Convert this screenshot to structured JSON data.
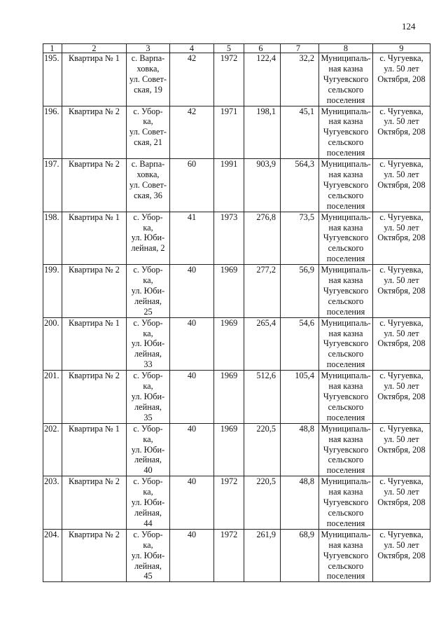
{
  "page_number": "124",
  "columns": [
    "1",
    "2",
    "3",
    "4",
    "5",
    "6",
    "7",
    "8",
    "9"
  ],
  "rows": [
    [
      "195.",
      "Квартира № 1",
      "с. Варпа-\nховка,\nул. Совет-\nская, 19",
      "42",
      "1972",
      "122,4",
      "32,2",
      "Муниципаль-\nная казна\nЧугуевского\nсельского\nпоселения",
      "с. Чугуевка,\nул. 50 лет\nОктября, 208"
    ],
    [
      "196.",
      "Квартира № 2",
      "с. Убор-\nка,\nул. Совет-\nская, 21",
      "42",
      "1971",
      "198,1",
      "45,1",
      "Муниципаль-\nная казна\nЧугуевского\nсельского\nпоселения",
      "с. Чугуевка,\nул. 50 лет\nОктября, 208"
    ],
    [
      "197.",
      "Квартира № 2",
      "с. Варпа-\nховка,\nул. Совет-\nская, 36",
      "60",
      "1991",
      "903,9",
      "564,3",
      "Муниципаль-\nная казна\nЧугуевского\nсельского\nпоселения",
      "с. Чугуевка,\nул. 50 лет\nОктября, 208"
    ],
    [
      "198.",
      "Квартира № 1",
      "с. Убор-\nка,\nул. Юби-\nлейная, 2",
      "41",
      "1973",
      "276,8",
      "73,5",
      "Муниципаль-\nная казна\nЧугуевского\nсельского\nпоселения",
      "с. Чугуевка,\nул. 50 лет\nОктября, 208"
    ],
    [
      "199.",
      "Квартира № 2",
      "с. Убор-\nка,\nул. Юби-\nлейная,\n25",
      "40",
      "1969",
      "277,2",
      "56,9",
      "Муниципаль-\nная казна\nЧугуевского\nсельского\nпоселения",
      "с. Чугуевка,\nул. 50 лет\nОктября, 208"
    ],
    [
      "200.",
      "Квартира № 1",
      "с. Убор-\nка,\nул. Юби-\nлейная,\n33",
      "40",
      "1969",
      "265,4",
      "54,6",
      "Муниципаль-\nная казна\nЧугуевского\nсельского\nпоселения",
      "с. Чугуевка,\nул. 50 лет\nОктября, 208"
    ],
    [
      "201.",
      "Квартира № 2",
      "с. Убор-\nка,\nул. Юби-\nлейная,\n35",
      "40",
      "1969",
      "512,6",
      "105,4",
      "Муниципаль-\nная казна\nЧугуевского\nсельского\nпоселения",
      "с. Чугуевка,\nул. 50 лет\nОктября, 208"
    ],
    [
      "202.",
      "Квартира № 1",
      "с. Убор-\nка,\nул. Юби-\nлейная,\n40",
      "40",
      "1969",
      "220,5",
      "48,8",
      "Муниципаль-\nная казна\nЧугуевского\nсельского\nпоселения",
      "с. Чугуевка,\nул. 50 лет\nОктября, 208"
    ],
    [
      "203.",
      "Квартира № 2",
      "с. Убор-\nка,\nул. Юби-\nлейная,\n44",
      "40",
      "1972",
      "220,5",
      "48,8",
      "Муниципаль-\nная казна\nЧугуевского\nсельского\nпоселения",
      "с. Чугуевка,\nул. 50 лет\nОктября, 208"
    ],
    [
      "204.",
      "Квартира № 2",
      "с. Убор-\nка,\nул. Юби-\nлейная,\n45",
      "40",
      "1972",
      "261,9",
      "68,9",
      "Муниципаль-\nная казна\nЧугуевского\nсельского\nпоселения",
      "с. Чугуевка,\nул. 50 лет\nОктября, 208"
    ]
  ]
}
